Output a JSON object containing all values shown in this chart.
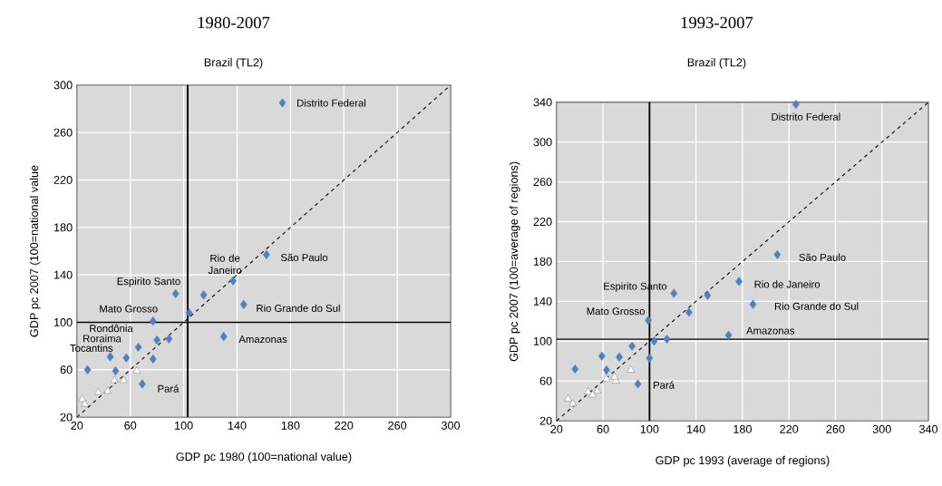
{
  "chart_data": [
    {
      "type": "scatter",
      "title": "1980-2007",
      "subtitle": "Brazil (TL2)",
      "xlabel": "GDP pc 1980 (100=national value)",
      "ylabel": "GDP pc 2007 (100=national value",
      "xlim": [
        20,
        300
      ],
      "ylim": [
        20,
        300
      ],
      "xticks": [
        20,
        60,
        100,
        140,
        180,
        220,
        260,
        300
      ],
      "yticks": [
        20,
        60,
        100,
        140,
        180,
        220,
        260,
        300
      ],
      "grid": true,
      "series": [
        {
          "type": "line",
          "color": "#000000",
          "line_style": "dashed",
          "marker": "none",
          "x": [
            20,
            300
          ],
          "values": [
            20,
            300
          ]
        },
        {
          "type": "scatter",
          "color": "#4f81bd",
          "marker": "diamond",
          "x": [
            174,
            162,
            137,
            115,
            94,
            104,
            145,
            130,
            77,
            89,
            80,
            66,
            45,
            57,
            77,
            28,
            49,
            69
          ],
          "values": [
            285,
            157,
            135,
            123,
            124,
            108,
            115,
            88,
            101,
            86,
            85,
            79,
            71,
            70,
            69,
            60,
            59,
            48
          ]
        },
        {
          "type": "scatter",
          "color": "#ffffff",
          "marker": "triangle",
          "x": [
            65,
            55,
            48,
            43,
            36,
            24,
            26
          ],
          "values": [
            59,
            51,
            51,
            42,
            41,
            35,
            31
          ]
        }
      ],
      "ref_lines": [
        {
          "axis": "x",
          "value": 103,
          "color": "#000000"
        },
        {
          "axis": "y",
          "value": 100,
          "color": "#000000"
        }
      ],
      "annotations": [
        {
          "text": "Distrito Federal",
          "x": 174,
          "y": 285
        },
        {
          "text": "São Paulo",
          "x": 162,
          "y": 157
        },
        {
          "text": "Rio de Janeiro",
          "x": 137,
          "y": 135
        },
        {
          "text": "Espirito Santo",
          "x": 94,
          "y": 124
        },
        {
          "text": "Rio Grande do Sul",
          "x": 145,
          "y": 115
        },
        {
          "text": "Mato Grosso",
          "x": 77,
          "y": 101
        },
        {
          "text": "Amazonas",
          "x": 130,
          "y": 88
        },
        {
          "text": "Pará",
          "x": 69,
          "y": 48
        },
        "Rondônia",
        "Roraima",
        "Tocantins"
      ]
    },
    {
      "type": "scatter",
      "title": "1993-2007",
      "subtitle": "Brazil (TL2)",
      "xlabel": "GDP pc 1993 (average of regions)",
      "ylabel": "GDP pc 2007 (100=average of regions)",
      "xlim": [
        20,
        340
      ],
      "ylim": [
        20,
        340
      ],
      "xticks": [
        20,
        60,
        100,
        140,
        180,
        220,
        260,
        300,
        340
      ],
      "yticks": [
        20,
        60,
        100,
        140,
        180,
        220,
        260,
        300,
        340
      ],
      "grid": true,
      "series": [
        {
          "type": "line",
          "color": "#000000",
          "line_style": "dashed",
          "marker": "none",
          "x": [
            20,
            340
          ],
          "values": [
            20,
            340
          ]
        },
        {
          "type": "scatter",
          "color": "#4f81bd",
          "marker": "diamond",
          "x": [
            226,
            210,
            177,
            189,
            150,
            121,
            134,
            168,
            99,
            104,
            115,
            85,
            100,
            74,
            59,
            63,
            36,
            90
          ],
          "values": [
            338,
            187,
            160,
            137,
            146,
            148,
            129,
            106,
            121,
            100,
            102,
            95,
            83,
            84,
            85,
            71,
            72,
            57
          ]
        },
        {
          "type": "scatter",
          "color": "#ffffff",
          "marker": "triangle",
          "x": [
            84,
            71,
            63,
            70,
            55,
            47,
            51,
            30,
            34
          ],
          "values": [
            71,
            60,
            62,
            64,
            50,
            49,
            46,
            42,
            37
          ]
        }
      ],
      "ref_lines": [
        {
          "axis": "x",
          "value": 100,
          "color": "#000000"
        },
        {
          "axis": "y",
          "value": 102,
          "color": "#000000"
        }
      ],
      "annotations": [
        {
          "text": "Distrito Federal",
          "x": 226,
          "y": 338
        },
        {
          "text": "São Paulo",
          "x": 210,
          "y": 187
        },
        {
          "text": "Rio de Janeiro",
          "x": 177,
          "y": 160
        },
        {
          "text": "Espirito Santo",
          "x": 121,
          "y": 148
        },
        {
          "text": "Rio Grande do Sul",
          "x": 189,
          "y": 137
        },
        {
          "text": "Mato Grosso",
          "x": 99,
          "y": 121
        },
        {
          "text": "Amazonas",
          "x": 168,
          "y": 106
        },
        {
          "text": "Pará",
          "x": 90,
          "y": 57
        }
      ]
    }
  ]
}
